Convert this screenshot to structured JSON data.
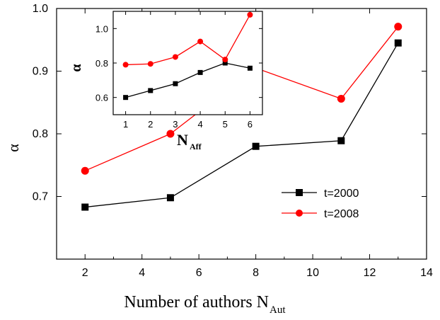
{
  "chart_data": [
    {
      "type": "line",
      "xlabel": "Number of authors N",
      "xlabel_sub": "Aut",
      "ylabel": "α",
      "xlim": [
        1,
        14
      ],
      "ylim": [
        0.6,
        1.0
      ],
      "xticks": [
        "2",
        "4",
        "6",
        "8",
        "10",
        "12",
        "14"
      ],
      "yticks": [
        "0.7",
        "0.8",
        "0.9",
        "1.0"
      ],
      "xtick_values": [
        2,
        4,
        6,
        8,
        10,
        12,
        14
      ],
      "ytick_values": [
        0.7,
        0.8,
        0.9,
        1.0
      ],
      "legend_position": "right",
      "series": [
        {
          "name": "t=2000",
          "color": "#000000",
          "marker": "square",
          "x": [
            2,
            5,
            8,
            11,
            13
          ],
          "y": [
            0.683,
            0.698,
            0.78,
            0.789,
            0.945
          ]
        },
        {
          "name": "t=2008",
          "color": "#ff0000",
          "marker": "circle",
          "x": [
            2,
            5,
            8,
            11,
            13
          ],
          "y": [
            0.741,
            0.8,
            0.905,
            0.856,
            0.971
          ]
        }
      ]
    },
    {
      "type": "line",
      "role": "inset",
      "xlabel": "N",
      "xlabel_sub": "Aff",
      "ylabel": "α",
      "xlim": [
        0.5,
        6.5
      ],
      "ylim": [
        0.5,
        1.1
      ],
      "xticks": [
        "1",
        "2",
        "3",
        "4",
        "5",
        "6"
      ],
      "yticks": [
        "0.6",
        "0.8",
        "1.0"
      ],
      "xtick_values": [
        1,
        2,
        3,
        4,
        5,
        6
      ],
      "ytick_values": [
        0.6,
        0.8,
        1.0
      ],
      "series": [
        {
          "name": "t=2000",
          "color": "#000000",
          "marker": "square",
          "x": [
            1,
            2,
            3,
            4,
            5,
            6
          ],
          "y": [
            0.6,
            0.64,
            0.68,
            0.745,
            0.8,
            0.77
          ]
        },
        {
          "name": "t=2008",
          "color": "#ff0000",
          "marker": "circle",
          "x": [
            1,
            2,
            3,
            4,
            5,
            6
          ],
          "y": [
            0.79,
            0.795,
            0.835,
            0.925,
            0.82,
            1.08
          ]
        }
      ]
    }
  ]
}
